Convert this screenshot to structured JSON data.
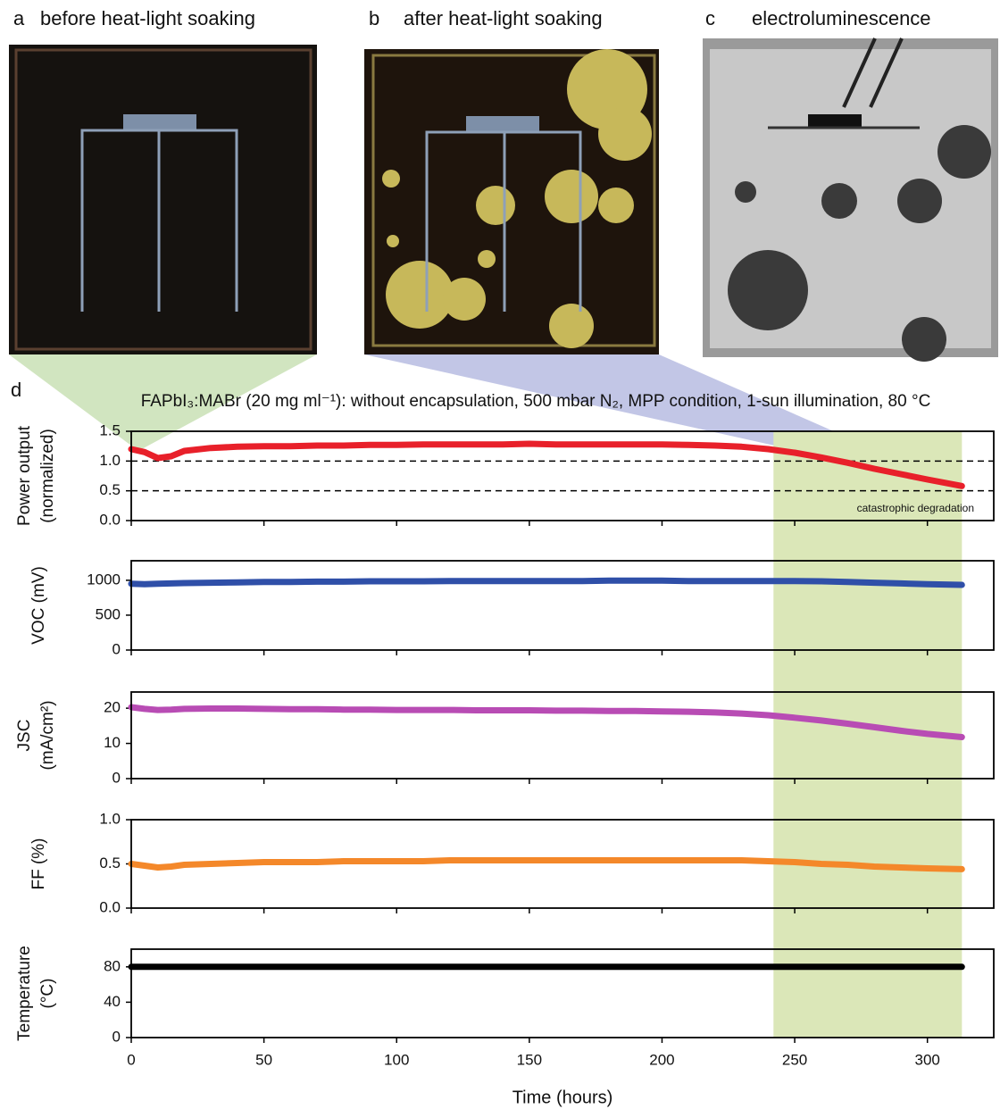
{
  "panels": [
    {
      "letter": "a",
      "title": "before heat-light soaking"
    },
    {
      "letter": "b",
      "title": "after heat-light soaking"
    },
    {
      "letter": "c",
      "title": "electroluminescence"
    }
  ],
  "panel_d_letter": "d",
  "shaded_x": [
    242,
    313
  ],
  "chart_data": [
    {
      "type": "line",
      "title": "FAPbI₃:MABr (20 mg ml⁻¹): without encapsulation, 500 mbar N₂, MPP condition, 1-sun illumination, 80 °C",
      "ylabel": [
        "Power output",
        "(normalized)"
      ],
      "color": "#e8202a",
      "x": [
        0,
        5,
        10,
        15,
        20,
        30,
        40,
        50,
        60,
        70,
        80,
        90,
        100,
        110,
        120,
        130,
        140,
        150,
        160,
        170,
        180,
        190,
        200,
        210,
        220,
        230,
        240,
        250,
        260,
        270,
        280,
        290,
        300,
        313
      ],
      "values": [
        1.2,
        1.15,
        1.05,
        1.08,
        1.17,
        1.22,
        1.24,
        1.25,
        1.25,
        1.26,
        1.26,
        1.27,
        1.27,
        1.28,
        1.28,
        1.28,
        1.28,
        1.29,
        1.28,
        1.28,
        1.28,
        1.28,
        1.28,
        1.27,
        1.26,
        1.24,
        1.2,
        1.14,
        1.06,
        0.97,
        0.87,
        0.78,
        0.69,
        0.58
      ],
      "xlim": [
        0,
        325
      ],
      "xticks": [
        0,
        50,
        100,
        150,
        200,
        250,
        300
      ],
      "ylim": [
        0,
        1.5
      ],
      "yticks": [
        {
          "value": 0,
          "label": "0.0"
        },
        {
          "value": 0.5,
          "label": "0.5"
        },
        {
          "value": 1,
          "label": "1.0"
        },
        {
          "value": 1.5,
          "label": "1.5"
        }
      ],
      "hlines": [
        1.0,
        0.5
      ],
      "annotation": "catastrophic degradation"
    },
    {
      "type": "line",
      "ylabel": [
        "VOC (mV)"
      ],
      "color": "#2f4fa8",
      "x": [
        0,
        5,
        10,
        15,
        20,
        30,
        40,
        50,
        60,
        70,
        80,
        90,
        100,
        110,
        120,
        130,
        140,
        150,
        160,
        170,
        180,
        190,
        200,
        210,
        220,
        230,
        240,
        250,
        260,
        270,
        280,
        290,
        300,
        313
      ],
      "values": [
        950,
        945,
        950,
        955,
        960,
        965,
        970,
        975,
        975,
        980,
        980,
        985,
        985,
        985,
        990,
        990,
        990,
        990,
        990,
        990,
        995,
        995,
        995,
        990,
        990,
        990,
        990,
        990,
        985,
        975,
        965,
        955,
        945,
        935
      ],
      "xlim": [
        0,
        325
      ],
      "xticks": [
        0,
        50,
        100,
        150,
        200,
        250,
        300
      ],
      "ylim": [
        0,
        1280
      ],
      "yticks": [
        0,
        500,
        1000
      ]
    },
    {
      "type": "line",
      "ylabel": [
        "JSC",
        "(mA/cm²)"
      ],
      "color": "#b84cb4",
      "x": [
        0,
        5,
        10,
        15,
        20,
        30,
        40,
        50,
        60,
        70,
        80,
        90,
        100,
        110,
        120,
        130,
        140,
        150,
        160,
        170,
        180,
        190,
        200,
        210,
        220,
        230,
        240,
        250,
        260,
        270,
        280,
        290,
        300,
        313
      ],
      "values": [
        20.3,
        19.8,
        19.5,
        19.6,
        19.8,
        19.9,
        19.9,
        19.8,
        19.7,
        19.7,
        19.6,
        19.6,
        19.5,
        19.5,
        19.5,
        19.4,
        19.4,
        19.4,
        19.3,
        19.3,
        19.2,
        19.2,
        19.1,
        19.0,
        18.8,
        18.5,
        18.0,
        17.3,
        16.5,
        15.6,
        14.6,
        13.6,
        12.7,
        11.8
      ],
      "xlim": [
        0,
        325
      ],
      "xticks": [
        0,
        50,
        100,
        150,
        200,
        250,
        300
      ],
      "ylim": [
        0,
        24.6
      ],
      "yticks": [
        0,
        10,
        20
      ]
    },
    {
      "type": "line",
      "ylabel": [
        "FF (%)"
      ],
      "color": "#f4882a",
      "x": [
        0,
        5,
        10,
        15,
        20,
        30,
        40,
        50,
        60,
        70,
        80,
        90,
        100,
        110,
        120,
        130,
        140,
        150,
        160,
        170,
        180,
        190,
        200,
        210,
        220,
        230,
        240,
        250,
        260,
        270,
        280,
        290,
        300,
        313
      ],
      "values": [
        0.5,
        0.48,
        0.46,
        0.47,
        0.49,
        0.5,
        0.51,
        0.52,
        0.52,
        0.52,
        0.53,
        0.53,
        0.53,
        0.53,
        0.54,
        0.54,
        0.54,
        0.54,
        0.54,
        0.54,
        0.54,
        0.54,
        0.54,
        0.54,
        0.54,
        0.54,
        0.53,
        0.52,
        0.5,
        0.49,
        0.47,
        0.46,
        0.45,
        0.44
      ],
      "xlim": [
        0,
        325
      ],
      "xticks": [
        0,
        50,
        100,
        150,
        200,
        250,
        300
      ],
      "ylim": [
        0,
        1
      ],
      "yticks": [
        {
          "value": 0,
          "label": "0.0"
        },
        {
          "value": 0.5,
          "label": "0.5"
        },
        {
          "value": 1,
          "label": "1.0"
        }
      ]
    },
    {
      "type": "line",
      "ylabel": [
        "Temperature",
        "(°C)"
      ],
      "color": "#000000",
      "x": [
        0,
        5,
        10,
        15,
        20,
        30,
        40,
        50,
        60,
        70,
        80,
        90,
        100,
        110,
        120,
        130,
        140,
        150,
        160,
        170,
        180,
        190,
        200,
        210,
        220,
        230,
        240,
        250,
        260,
        270,
        280,
        290,
        300,
        313
      ],
      "values": [
        80,
        80,
        80,
        80,
        80,
        80,
        80,
        80,
        80,
        80,
        80,
        80,
        80,
        80,
        80,
        80,
        80,
        80,
        80,
        80,
        80,
        80,
        80,
        80,
        80,
        80,
        80,
        80,
        80,
        80,
        80,
        80,
        80,
        80
      ],
      "xlim": [
        0,
        325
      ],
      "xticks": [
        0,
        50,
        100,
        150,
        200,
        250,
        300
      ],
      "xlabel": "Time (hours)",
      "ylim": [
        0,
        100
      ],
      "yticks": [
        0,
        40,
        80
      ]
    }
  ]
}
